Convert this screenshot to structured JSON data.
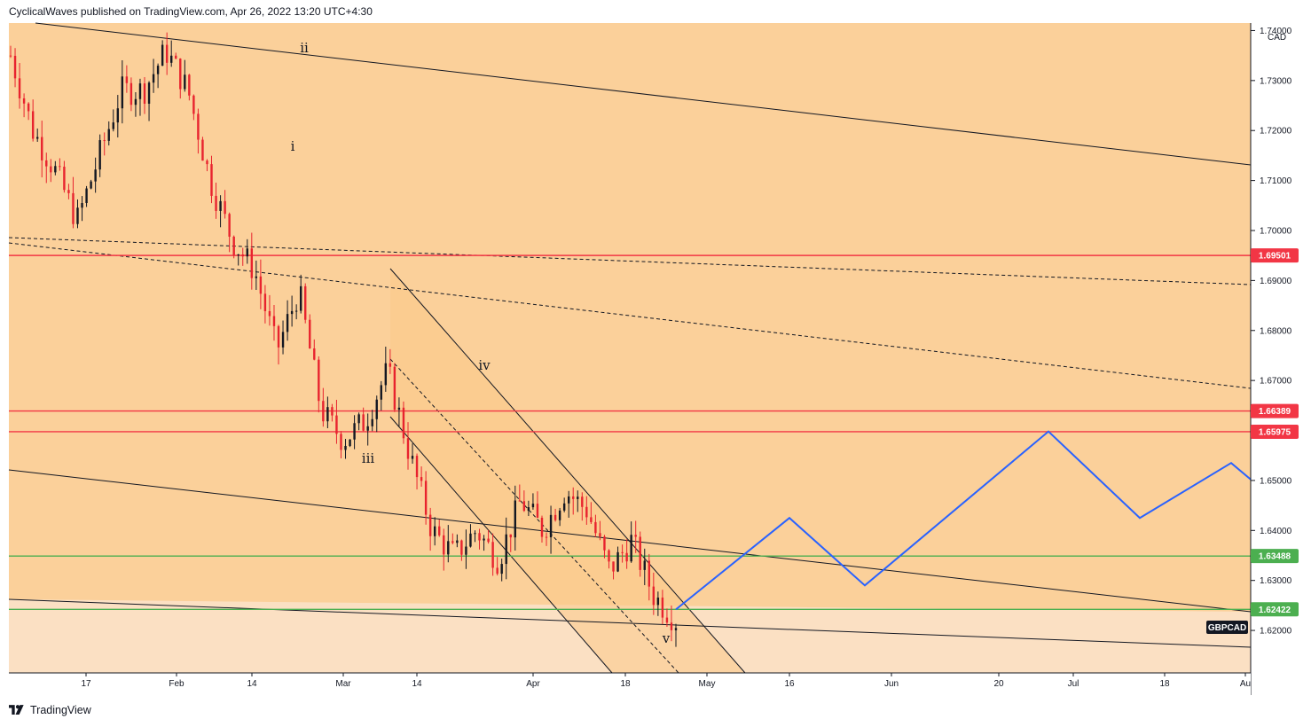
{
  "header": {
    "text": "CyclicalWaves published on TradingView.com, Apr 26, 2022 13:20 UTC+4:30"
  },
  "footer": {
    "brand": "TradingView",
    "logo_icon": "tradingview-logo-icon"
  },
  "chart_data": {
    "type": "candlestick",
    "symbol": "GBPCAD",
    "currency_label": "CAD",
    "y_axis": {
      "ylim": [
        1.6115,
        1.7415
      ],
      "tick_labels": [
        "1.74000",
        "1.73000",
        "1.72000",
        "1.71000",
        "1.70000",
        "1.69000",
        "1.68000",
        "1.67000",
        "1.65000",
        "1.64000",
        "1.63000",
        "1.62000"
      ]
    },
    "x_axis": {
      "tick_labels": [
        "17",
        "Feb",
        "14",
        "Mar",
        "14",
        "Apr",
        "18",
        "May",
        "16",
        "Jun",
        "20",
        "Jul",
        "18",
        "Au"
      ]
    },
    "price_levels": [
      {
        "value": 1.69501,
        "label": "1.69501",
        "color": "#f23645"
      },
      {
        "value": 1.66389,
        "label": "1.66389",
        "color": "#f23645"
      },
      {
        "value": 1.65975,
        "label": "1.65975",
        "color": "#f23645"
      },
      {
        "value": 1.63488,
        "label": "1.63488",
        "color": "#4caf50"
      },
      {
        "value": 1.62422,
        "label": "1.62422",
        "color": "#4caf50"
      }
    ],
    "wave_labels": [
      "ii",
      "i",
      "iii",
      "iv",
      "v"
    ],
    "close_path_anchor_prices": [
      1.735,
      1.72,
      1.712,
      1.702,
      1.715,
      1.728,
      1.728,
      1.736,
      1.728,
      1.71,
      1.698,
      1.692,
      1.676,
      1.688,
      1.664,
      1.658,
      1.662,
      1.672,
      1.655,
      1.64,
      1.635,
      1.64,
      1.634,
      1.646,
      1.64,
      1.648,
      1.644,
      1.632,
      1.638,
      1.627,
      1.622
    ],
    "projection_path_prices": [
      1.6242,
      1.6425,
      1.629,
      1.6598,
      1.6425,
      1.6535,
      1.6502
    ],
    "colors": {
      "background_zone": "#fbd5a5",
      "channel_fill": "#f9cb8c",
      "lower_zone": "#fbe0c3",
      "projection": "#2962ff",
      "candle_up": "#131722",
      "candle_down": "#e8232e"
    }
  }
}
